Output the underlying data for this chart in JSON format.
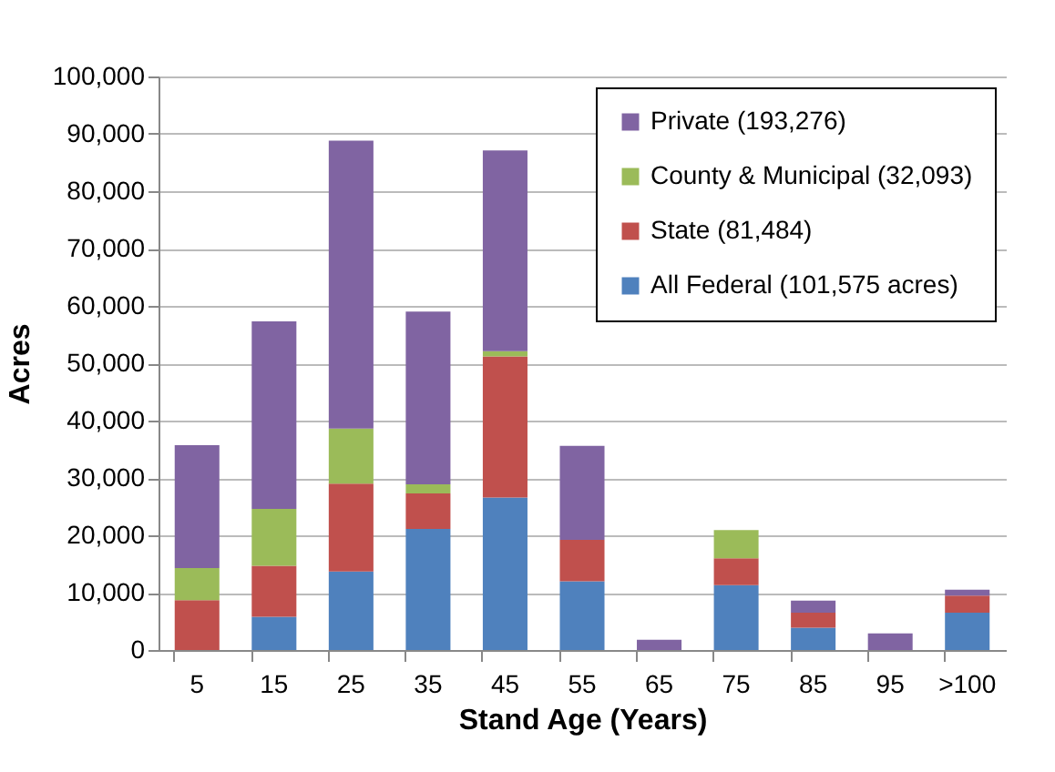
{
  "chart_data": {
    "type": "bar",
    "stacked": true,
    "xlabel": "Stand Age (Years)",
    "ylabel": "Acres",
    "categories": [
      "5",
      "15",
      "25",
      "35",
      "45",
      "55",
      "65",
      "75",
      "85",
      "95",
      ">100"
    ],
    "series": [
      {
        "name": "All Federal (101,575 acres)",
        "color": "#4f81bd",
        "values": [
          null,
          5800,
          13700,
          21100,
          26600,
          12000,
          null,
          11300,
          3900,
          null,
          6500
        ]
      },
      {
        "name": "State (81,484)",
        "color": "#c0504d",
        "values": [
          8700,
          8900,
          15300,
          6200,
          24600,
          7200,
          null,
          4700,
          2600,
          null,
          3000
        ]
      },
      {
        "name": "County & Municipal (32,093)",
        "color": "#9bbb59",
        "values": [
          5600,
          9900,
          9600,
          1600,
          900,
          null,
          null,
          4900,
          null,
          null,
          null
        ]
      },
      {
        "name": "Private (193,276)",
        "color": "#8064a2",
        "values": [
          21400,
          32700,
          50200,
          30100,
          35000,
          16400,
          1800,
          null,
          2100,
          2900,
          1000
        ]
      }
    ],
    "ylim": [
      0,
      100000
    ],
    "yticks": [
      {
        "value": 0,
        "label": "0"
      },
      {
        "value": 10000,
        "label": "10,000"
      },
      {
        "value": 20000,
        "label": "20,000"
      },
      {
        "value": 30000,
        "label": "30,000"
      },
      {
        "value": 40000,
        "label": "40,000"
      },
      {
        "value": 50000,
        "label": "50,000"
      },
      {
        "value": 60000,
        "label": "60,000"
      },
      {
        "value": 70000,
        "label": "70,000"
      },
      {
        "value": 80000,
        "label": "80,000"
      },
      {
        "value": 90000,
        "label": "90,000"
      },
      {
        "value": 100000,
        "label": "100,000"
      }
    ],
    "grid": "y",
    "legend": "top right"
  }
}
